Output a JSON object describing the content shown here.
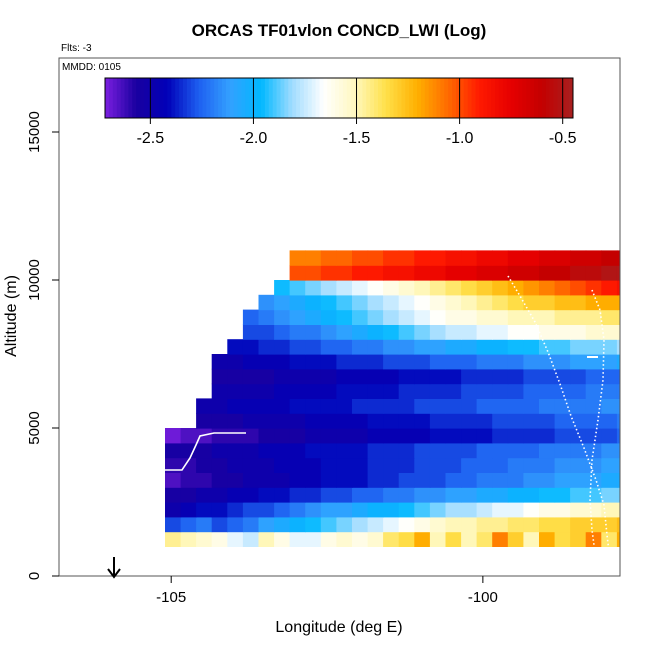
{
  "chart_data": {
    "type": "heatmap",
    "title": "ORCAS TF01vlon CONCD_LWI (Log)",
    "flights_label": "Flts: -3",
    "date_label": "MMDD: 0105",
    "xlabel": "Longitude (deg E)",
    "ylabel": "Altitude (m)",
    "xlim": [
      -106.8,
      -97.8
    ],
    "ylim": [
      0,
      17500
    ],
    "x_ticks": [
      -105,
      -100
    ],
    "x_tick_labels": [
      "-105",
      "-100"
    ],
    "y_ticks": [
      0,
      5000,
      10000,
      15000
    ],
    "y_tick_labels": [
      "0",
      "5000",
      "10000",
      "15000"
    ],
    "colorbar": {
      "range": [
        -2.72,
        -0.45
      ],
      "ticks": [
        -2.5,
        -2.0,
        -1.5,
        -1.0,
        -0.5
      ],
      "tick_labels": [
        "-2.5",
        "-2.0",
        "-1.5",
        "-1.0",
        "-0.5"
      ],
      "colors": [
        "#7b1fe0",
        "#1a00a0",
        "#0000b8",
        "#1e5ff0",
        "#33a0ff",
        "#00b8ff",
        "#a0dcff",
        "#ffffff",
        "#fff8c0",
        "#ffe04a",
        "#ffb000",
        "#ff6a00",
        "#ff1a00",
        "#e60000",
        "#c40000",
        "#a82020"
      ]
    },
    "grid": {
      "x0": -105.1,
      "dx": 0.25,
      "ncols": 31,
      "y0": 1000,
      "dy": 500,
      "nrows": 20,
      "top_row_by_col": [
        6,
        6,
        8,
        11,
        12,
        14,
        15,
        16,
        18,
        18,
        18,
        18,
        18,
        18,
        18,
        18,
        18,
        18,
        18,
        18,
        18,
        18,
        18,
        18,
        18,
        18,
        18,
        18,
        18,
        18,
        18
      ],
      "values": [
        [
          -1.45,
          -1.5,
          -1.55,
          -1.6,
          -1.7,
          -1.75,
          -1.5,
          -1.6,
          -1.7,
          -1.7,
          -1.6,
          -1.55,
          -1.6,
          -1.55,
          -1.4,
          -1.35,
          -1.2,
          -1.5,
          -1.35,
          -1.5,
          -1.4,
          -1.1,
          -1.3,
          -1.5,
          -1.2,
          -1.35,
          -1.3,
          -1.1,
          -1.4,
          -1.2,
          -1.0
        ],
        [
          -2.3,
          -2.25,
          -2.2,
          -2.3,
          -2.25,
          -2.2,
          -2.1,
          -2.05,
          -2.0,
          -1.95,
          -1.9,
          -1.85,
          -1.8,
          -1.75,
          -1.7,
          -1.65,
          -1.6,
          -1.55,
          -1.5,
          -1.5,
          -1.45,
          -1.45,
          -1.4,
          -1.4,
          -1.35,
          -1.35,
          -1.3,
          -1.3,
          -1.3,
          -1.25,
          -1.2
        ],
        [
          -2.5,
          -2.45,
          -2.4,
          -2.4,
          -2.35,
          -2.3,
          -2.3,
          -2.25,
          -2.2,
          -2.15,
          -2.1,
          -2.1,
          -2.05,
          -2.0,
          -2.0,
          -1.95,
          -1.9,
          -1.85,
          -1.8,
          -1.8,
          -1.75,
          -1.7,
          -1.7,
          -1.65,
          -1.6,
          -1.6,
          -1.55,
          -1.55,
          -1.5,
          -1.5,
          -1.45
        ],
        [
          -2.55,
          -2.55,
          -2.5,
          -2.5,
          -2.45,
          -2.45,
          -2.4,
          -2.4,
          -2.35,
          -2.35,
          -2.3,
          -2.3,
          -2.25,
          -2.25,
          -2.2,
          -2.2,
          -2.15,
          -2.15,
          -2.1,
          -2.1,
          -2.05,
          -2.05,
          -2.0,
          -2.0,
          -1.95,
          -1.95,
          -1.9,
          -1.9,
          -1.85,
          -1.85,
          -1.8
        ],
        [
          -2.65,
          -2.6,
          -2.6,
          -2.55,
          -2.55,
          -2.5,
          -2.5,
          -2.5,
          -2.45,
          -2.45,
          -2.4,
          -2.4,
          -2.4,
          -2.35,
          -2.35,
          -2.3,
          -2.3,
          -2.3,
          -2.25,
          -2.25,
          -2.2,
          -2.2,
          -2.2,
          -2.15,
          -2.15,
          -2.1,
          -2.1,
          -2.1,
          -2.05,
          -2.05,
          -2.0
        ],
        [
          -2.6,
          -2.6,
          -2.55,
          -2.55,
          -2.5,
          -2.5,
          -2.5,
          -2.45,
          -2.45,
          -2.45,
          -2.4,
          -2.4,
          -2.4,
          -2.35,
          -2.35,
          -2.35,
          -2.3,
          -2.3,
          -2.3,
          -2.25,
          -2.25,
          -2.25,
          -2.2,
          -2.2,
          -2.2,
          -2.15,
          -2.15,
          -2.15,
          -2.1,
          -2.1,
          -2.1
        ],
        [
          -2.55,
          -2.55,
          -2.55,
          -2.5,
          -2.5,
          -2.5,
          -2.45,
          -2.45,
          -2.45,
          -2.4,
          -2.4,
          -2.4,
          -2.4,
          -2.35,
          -2.35,
          -2.35,
          -2.3,
          -2.3,
          -2.3,
          -2.3,
          -2.25,
          -2.25,
          -2.25,
          -2.25,
          -2.2,
          -2.2,
          -2.2,
          -2.2,
          -2.15,
          -2.15,
          -2.15
        ],
        [
          -2.7,
          -2.65,
          -2.65,
          -2.6,
          -2.6,
          -2.6,
          -2.55,
          -2.55,
          -2.55,
          -2.5,
          -2.5,
          -2.5,
          -2.5,
          -2.45,
          -2.45,
          -2.45,
          -2.45,
          -2.4,
          -2.4,
          -2.4,
          -2.4,
          -2.35,
          -2.35,
          -2.35,
          -2.35,
          -2.3,
          -2.3,
          -2.3,
          -2.3,
          -2.25,
          -2.25
        ],
        [
          -2.6,
          -2.6,
          -2.55,
          -2.55,
          -2.55,
          -2.5,
          -2.5,
          -2.5,
          -2.5,
          -2.45,
          -2.45,
          -2.45,
          -2.45,
          -2.4,
          -2.4,
          -2.4,
          -2.4,
          -2.35,
          -2.35,
          -2.35,
          -2.35,
          -2.3,
          -2.3,
          -2.3,
          -2.3,
          -2.25,
          -2.25,
          -2.25,
          -2.25,
          -2.2,
          -2.2
        ],
        [
          -2.5,
          -2.5,
          -2.5,
          -2.5,
          -2.45,
          -2.45,
          -2.45,
          -2.45,
          -2.4,
          -2.4,
          -2.4,
          -2.4,
          -2.35,
          -2.35,
          -2.35,
          -2.35,
          -2.3,
          -2.3,
          -2.3,
          -2.3,
          -2.25,
          -2.25,
          -2.25,
          -2.25,
          -2.2,
          -2.2,
          -2.2,
          -2.2,
          -2.15,
          -2.15,
          -2.15
        ],
        [
          -2.55,
          -2.55,
          -2.55,
          -2.5,
          -2.5,
          -2.5,
          -2.5,
          -2.45,
          -2.45,
          -2.45,
          -2.45,
          -2.4,
          -2.4,
          -2.4,
          -2.4,
          -2.35,
          -2.35,
          -2.35,
          -2.35,
          -2.3,
          -2.3,
          -2.3,
          -2.3,
          -2.25,
          -2.25,
          -2.25,
          -2.25,
          -2.2,
          -2.2,
          -2.2,
          -2.2
        ],
        [
          -2.6,
          -2.6,
          -2.6,
          -2.55,
          -2.55,
          -2.55,
          -2.55,
          -2.5,
          -2.5,
          -2.5,
          -2.5,
          -2.45,
          -2.45,
          -2.45,
          -2.45,
          -2.4,
          -2.4,
          -2.4,
          -2.4,
          -2.35,
          -2.35,
          -2.35,
          -2.35,
          -2.3,
          -2.3,
          -2.3,
          -2.3,
          -2.25,
          -2.25,
          -2.25,
          -2.25
        ],
        [
          -2.55,
          -2.55,
          -2.5,
          -2.5,
          -2.5,
          -2.45,
          -2.45,
          -2.45,
          -2.4,
          -2.4,
          -2.4,
          -2.35,
          -2.35,
          -2.35,
          -2.3,
          -2.3,
          -2.3,
          -2.25,
          -2.25,
          -2.25,
          -2.2,
          -2.2,
          -2.2,
          -2.15,
          -2.15,
          -2.15,
          -2.1,
          -2.1,
          -2.1,
          -2.05,
          -2.05
        ],
        [
          -2.5,
          -2.5,
          -2.45,
          -2.45,
          -2.4,
          -2.4,
          -2.35,
          -2.35,
          -2.3,
          -2.3,
          -2.25,
          -2.25,
          -2.2,
          -2.2,
          -2.15,
          -2.15,
          -2.1,
          -2.1,
          -2.05,
          -2.05,
          -2.0,
          -2.0,
          -1.95,
          -1.95,
          -1.9,
          -1.9,
          -1.85,
          -1.85,
          -1.85,
          -1.8,
          -1.8
        ],
        [
          -2.45,
          -2.45,
          -2.4,
          -2.4,
          -2.35,
          -2.3,
          -2.3,
          -2.25,
          -2.2,
          -2.2,
          -2.15,
          -2.1,
          -2.05,
          -2.0,
          -1.95,
          -1.9,
          -1.85,
          -1.8,
          -1.75,
          -1.75,
          -1.7,
          -1.7,
          -1.65,
          -1.65,
          -1.6,
          -1.6,
          -1.6,
          -1.55,
          -1.55,
          -1.55,
          -1.5
        ],
        [
          -2.4,
          -2.4,
          -2.35,
          -2.35,
          -2.3,
          -2.25,
          -2.2,
          -2.15,
          -2.1,
          -2.05,
          -2.0,
          -1.95,
          -1.9,
          -1.85,
          -1.8,
          -1.75,
          -1.7,
          -1.65,
          -1.6,
          -1.6,
          -1.55,
          -1.55,
          -1.5,
          -1.5,
          -1.5,
          -1.45,
          -1.45,
          -1.45,
          -1.4,
          -1.4,
          -1.4
        ],
        [
          -2.4,
          -2.4,
          -2.35,
          -2.3,
          -2.25,
          -2.2,
          -2.15,
          -2.1,
          -2.05,
          -2.0,
          -1.95,
          -1.9,
          -1.85,
          -1.8,
          -1.75,
          -1.7,
          -1.65,
          -1.6,
          -1.55,
          -1.5,
          -1.45,
          -1.4,
          -1.35,
          -1.3,
          -1.3,
          -1.25,
          -1.25,
          -1.2,
          -1.2,
          -1.2,
          -1.15
        ],
        [
          -2.2,
          -2.2,
          -2.15,
          -2.1,
          -2.05,
          -2.0,
          -2.0,
          -1.95,
          -1.9,
          -1.85,
          -1.8,
          -1.75,
          -1.7,
          -1.65,
          -1.6,
          -1.55,
          -1.5,
          -1.45,
          -1.4,
          -1.35,
          -1.3,
          -1.25,
          -1.2,
          -1.15,
          -1.1,
          -1.05,
          -1.0,
          -0.95,
          -0.9,
          -0.85,
          -0.8
        ],
        [
          -1.2,
          -1.2,
          -1.15,
          -1.15,
          -1.1,
          -1.1,
          -1.05,
          -1.05,
          -1.0,
          -1.0,
          -0.95,
          -0.95,
          -0.9,
          -0.9,
          -0.85,
          -0.85,
          -0.8,
          -0.8,
          -0.75,
          -0.75,
          -0.7,
          -0.7,
          -0.65,
          -0.65,
          -0.6,
          -0.6,
          -0.55,
          -0.55,
          -0.5,
          -0.5,
          -0.5
        ],
        [
          -1.3,
          -1.3,
          -1.25,
          -1.25,
          -1.2,
          -1.2,
          -1.15,
          -1.15,
          -1.1,
          -1.1,
          -1.05,
          -1.05,
          -1.0,
          -1.0,
          -0.95,
          -0.95,
          -0.9,
          -0.9,
          -0.85,
          -0.85,
          -0.8,
          -0.8,
          -0.75,
          -0.75,
          -0.7,
          -0.7,
          -0.65,
          -0.65,
          -0.6,
          -0.6,
          -0.55
        ]
      ]
    }
  }
}
